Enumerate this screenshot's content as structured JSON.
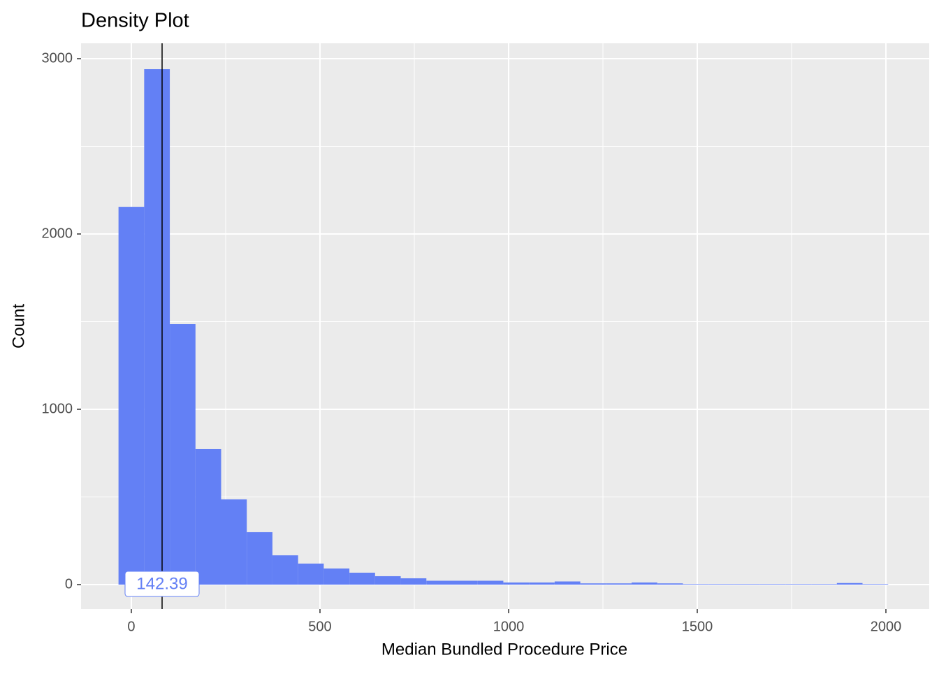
{
  "chart_data": {
    "type": "histogram",
    "title": "Density Plot",
    "x_label": "Median Bundled Procedure Price",
    "y_label": "Count",
    "bins": [
      -34,
      34,
      102,
      170,
      238,
      306,
      374,
      442,
      510,
      578,
      646,
      714,
      782,
      850,
      918,
      986,
      1054,
      1122,
      1190,
      1258,
      1326,
      1394,
      1462,
      1530,
      1598,
      1666,
      1734,
      1802,
      1870,
      1938,
      2006
    ],
    "values": [
      2155,
      2940,
      1486,
      773,
      486,
      299,
      167,
      120,
      92,
      68,
      48,
      36,
      22,
      22,
      22,
      12,
      12,
      18,
      7,
      7,
      12,
      7,
      3,
      3,
      3,
      3,
      3,
      3,
      9,
      3
    ],
    "color": "#6380f5",
    "xlim": [
      -133.3,
      2114.8
    ],
    "ylim": [
      -139.4,
      3087.6
    ],
    "xticks": [
      0,
      500,
      1000,
      1500,
      2000
    ],
    "yticks": [
      0,
      1000,
      2000,
      3000
    ],
    "minor_xticks": [
      250,
      750,
      1250,
      1750
    ],
    "minor_yticks": [
      500,
      1500,
      2500
    ],
    "grid": true,
    "vline": {
      "x": 81.5,
      "label": "142.39"
    }
  }
}
